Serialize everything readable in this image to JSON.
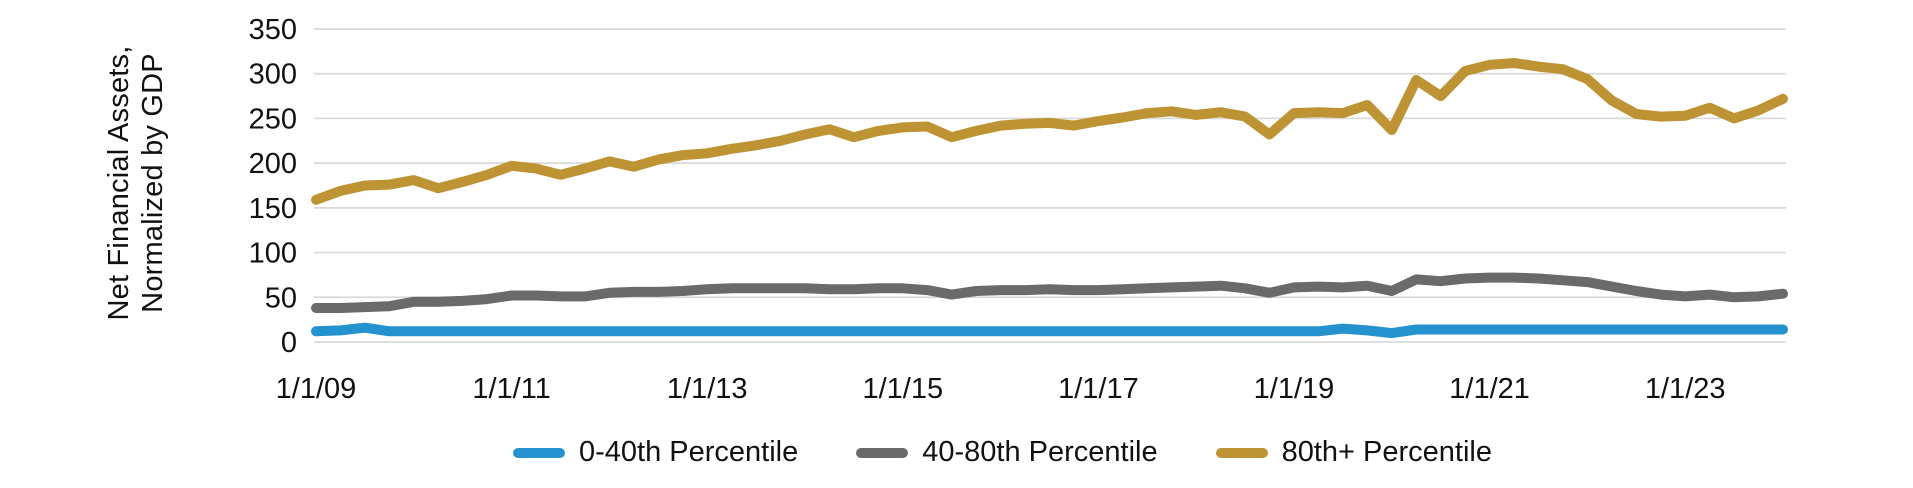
{
  "chart_data": {
    "type": "line",
    "title": "",
    "ylabel_lines": [
      "Net Financial Assets,",
      "Normalized by GDP"
    ],
    "ylim": [
      0,
      350
    ],
    "y_ticks": [
      0,
      50,
      100,
      150,
      200,
      250,
      300,
      350
    ],
    "grid": true,
    "legend_position": "bottom",
    "x_tick_labels": [
      "1/1/09",
      "1/1/11",
      "1/1/13",
      "1/1/15",
      "1/1/17",
      "1/1/19",
      "1/1/21",
      "1/1/23"
    ],
    "x_tick_indices": [
      0,
      8,
      16,
      24,
      32,
      40,
      48,
      56
    ],
    "x_dates": [
      "1/1/09",
      "4/1/09",
      "7/1/09",
      "10/1/09",
      "1/1/10",
      "4/1/10",
      "7/1/10",
      "10/1/10",
      "1/1/11",
      "4/1/11",
      "7/1/11",
      "10/1/11",
      "1/1/12",
      "4/1/12",
      "7/1/12",
      "10/1/12",
      "1/1/13",
      "4/1/13",
      "7/1/13",
      "10/1/13",
      "1/1/14",
      "4/1/14",
      "7/1/14",
      "10/1/14",
      "1/1/15",
      "4/1/15",
      "7/1/15",
      "10/1/15",
      "1/1/16",
      "4/1/16",
      "7/1/16",
      "10/1/16",
      "1/1/17",
      "4/1/17",
      "7/1/17",
      "10/1/17",
      "1/1/18",
      "4/1/18",
      "7/1/18",
      "10/1/18",
      "1/1/19",
      "4/1/19",
      "7/1/19",
      "10/1/19",
      "1/1/20",
      "4/1/20",
      "7/1/20",
      "10/1/20",
      "1/1/21",
      "4/1/21",
      "7/1/21",
      "10/1/21",
      "1/1/22",
      "4/1/22",
      "7/1/22",
      "10/1/22",
      "1/1/23",
      "4/1/23",
      "7/1/23",
      "10/1/23",
      "1/1/24"
    ],
    "series": [
      {
        "name": "0-40th Percentile",
        "color": "#2492CF",
        "values": [
          12,
          13,
          16,
          12,
          12,
          12,
          12,
          12,
          12,
          12,
          12,
          12,
          12,
          12,
          12,
          12,
          12,
          12,
          12,
          12,
          12,
          12,
          12,
          12,
          12,
          12,
          12,
          12,
          12,
          12,
          12,
          12,
          12,
          12,
          12,
          12,
          12,
          12,
          12,
          12,
          12,
          12,
          15,
          13,
          10,
          14,
          14,
          14,
          14,
          14,
          14,
          14,
          14,
          14,
          14,
          14,
          14,
          14,
          14,
          14,
          14
        ]
      },
      {
        "name": "40-80th Percentile",
        "color": "#6A6A6A",
        "values": [
          38,
          38,
          39,
          40,
          45,
          45,
          46,
          48,
          52,
          52,
          51,
          51,
          55,
          56,
          56,
          57,
          59,
          60,
          60,
          60,
          60,
          59,
          59,
          60,
          60,
          58,
          53,
          57,
          58,
          58,
          59,
          58,
          58,
          59,
          60,
          61,
          62,
          63,
          60,
          55,
          61,
          62,
          61,
          63,
          57,
          70,
          68,
          71,
          72,
          72,
          71,
          69,
          67,
          62,
          57,
          53,
          51,
          53,
          50,
          51,
          54
        ]
      },
      {
        "name": "80th+ Percentile",
        "color": "#BE9333",
        "values": [
          159,
          169,
          175,
          176,
          181,
          172,
          179,
          187,
          197,
          194,
          187,
          194,
          202,
          196,
          204,
          209,
          211,
          216,
          220,
          225,
          232,
          238,
          229,
          236,
          240,
          241,
          229,
          236,
          242,
          244,
          245,
          242,
          247,
          251,
          256,
          258,
          254,
          257,
          252,
          232,
          256,
          257,
          256,
          265,
          237,
          293,
          275,
          303,
          310,
          312,
          308,
          305,
          294,
          270,
          255,
          252,
          253,
          262,
          250,
          259,
          272
        ]
      }
    ],
    "gridline_color": "#D9D9D9",
    "line_width": 10
  },
  "legend": {
    "items": [
      {
        "label": "0-40th Percentile",
        "color": "#2492CF"
      },
      {
        "label": "40-80th Percentile",
        "color": "#6A6A6A"
      },
      {
        "label": "80th+ Percentile",
        "color": "#BE9333"
      }
    ]
  }
}
